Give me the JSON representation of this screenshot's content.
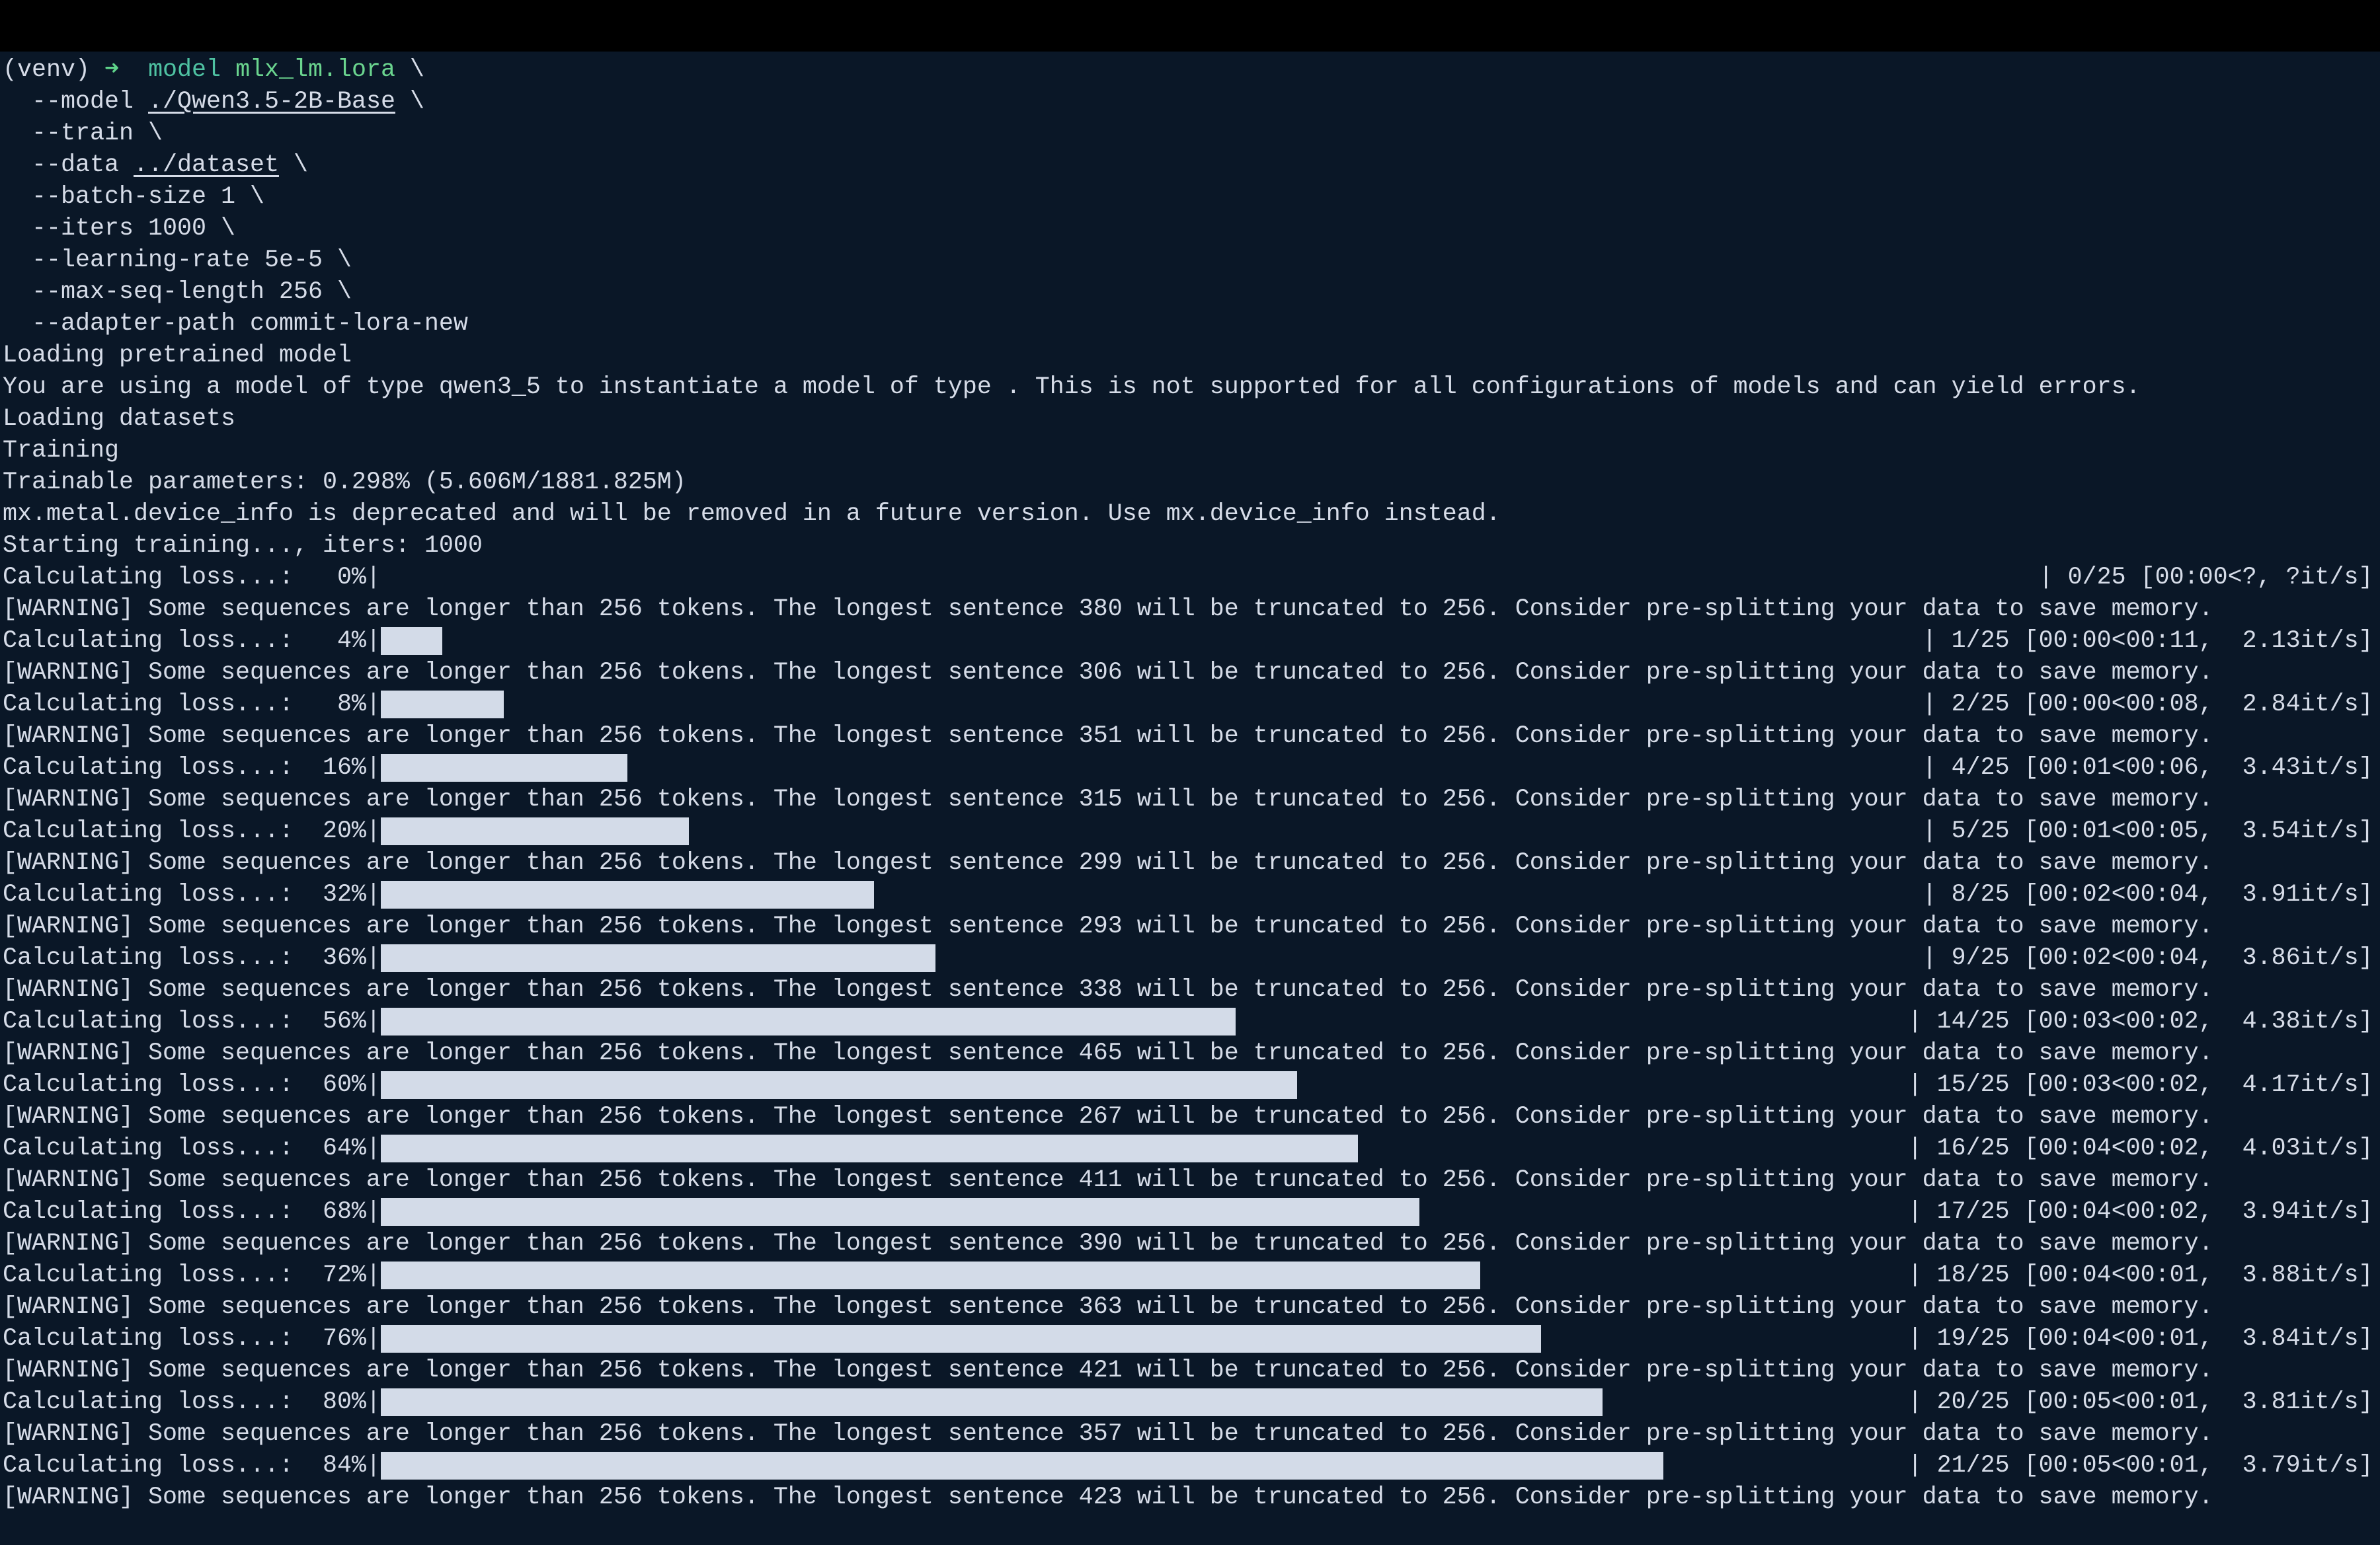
{
  "prompt": {
    "venv": "(venv)",
    "arrow": "➜",
    "dir": "model",
    "command": "mlx_lm.lora",
    "cont": "\\",
    "args": [
      {
        "flag": "  --model ",
        "value": "./Qwen3.5-2B-Base",
        "underline": true
      },
      {
        "flag": "  --train",
        "value": "",
        "underline": false
      },
      {
        "flag": "  --data ",
        "value": "../dataset",
        "underline": true
      },
      {
        "flag": "  --batch-size 1",
        "value": "",
        "underline": false
      },
      {
        "flag": "  --iters 1000",
        "value": "",
        "underline": false
      },
      {
        "flag": "  --learning-rate 5e-5",
        "value": "",
        "underline": false
      },
      {
        "flag": "  --max-seq-length 256",
        "value": "",
        "underline": false
      },
      {
        "flag": "  --adapter-path commit-lora-new",
        "value": "",
        "underline": false,
        "last": true
      }
    ]
  },
  "output": [
    {
      "type": "text",
      "text": "Loading pretrained model"
    },
    {
      "type": "text",
      "text": "You are using a model of type qwen3_5 to instantiate a model of type . This is not supported for all configurations of models and can yield errors."
    },
    {
      "type": "text",
      "text": "Loading datasets"
    },
    {
      "type": "text",
      "text": "Training"
    },
    {
      "type": "text",
      "text": "Trainable parameters: 0.298% (5.606M/1881.825M)"
    },
    {
      "type": "text",
      "text": "mx.metal.device_info is deprecated and will be removed in a future version. Use mx.device_info instead."
    },
    {
      "type": "text",
      "text": "Starting training..., iters: 1000"
    },
    {
      "type": "progress",
      "prefix": "Calculating loss...:   0%|",
      "percent": 0,
      "suffix": "| 0/25 [00:00<?, ?it/s]"
    },
    {
      "type": "text",
      "text": "[WARNING] Some sequences are longer than 256 tokens. The longest sentence 380 will be truncated to 256. Consider pre-splitting your data to save memory."
    },
    {
      "type": "progress",
      "prefix": "Calculating loss...:   4%|",
      "percent": 4,
      "suffix": "| 1/25 [00:00<00:11,  2.13it/s]"
    },
    {
      "type": "text",
      "text": "[WARNING] Some sequences are longer than 256 tokens. The longest sentence 306 will be truncated to 256. Consider pre-splitting your data to save memory."
    },
    {
      "type": "progress",
      "prefix": "Calculating loss...:   8%|",
      "percent": 8,
      "suffix": "| 2/25 [00:00<00:08,  2.84it/s]"
    },
    {
      "type": "text",
      "text": "[WARNING] Some sequences are longer than 256 tokens. The longest sentence 351 will be truncated to 256. Consider pre-splitting your data to save memory."
    },
    {
      "type": "progress",
      "prefix": "Calculating loss...:  16%|",
      "percent": 16,
      "suffix": "| 4/25 [00:01<00:06,  3.43it/s]"
    },
    {
      "type": "text",
      "text": "[WARNING] Some sequences are longer than 256 tokens. The longest sentence 315 will be truncated to 256. Consider pre-splitting your data to save memory."
    },
    {
      "type": "progress",
      "prefix": "Calculating loss...:  20%|",
      "percent": 20,
      "suffix": "| 5/25 [00:01<00:05,  3.54it/s]"
    },
    {
      "type": "text",
      "text": "[WARNING] Some sequences are longer than 256 tokens. The longest sentence 299 will be truncated to 256. Consider pre-splitting your data to save memory."
    },
    {
      "type": "progress",
      "prefix": "Calculating loss...:  32%|",
      "percent": 32,
      "suffix": "| 8/25 [00:02<00:04,  3.91it/s]"
    },
    {
      "type": "text",
      "text": "[WARNING] Some sequences are longer than 256 tokens. The longest sentence 293 will be truncated to 256. Consider pre-splitting your data to save memory."
    },
    {
      "type": "progress",
      "prefix": "Calculating loss...:  36%|",
      "percent": 36,
      "suffix": "| 9/25 [00:02<00:04,  3.86it/s]"
    },
    {
      "type": "text",
      "text": "[WARNING] Some sequences are longer than 256 tokens. The longest sentence 338 will be truncated to 256. Consider pre-splitting your data to save memory."
    },
    {
      "type": "progress",
      "prefix": "Calculating loss...:  56%|",
      "percent": 56,
      "suffix": "| 14/25 [00:03<00:02,  4.38it/s]"
    },
    {
      "type": "text",
      "text": "[WARNING] Some sequences are longer than 256 tokens. The longest sentence 465 will be truncated to 256. Consider pre-splitting your data to save memory."
    },
    {
      "type": "progress",
      "prefix": "Calculating loss...:  60%|",
      "percent": 60,
      "suffix": "| 15/25 [00:03<00:02,  4.17it/s]"
    },
    {
      "type": "text",
      "text": "[WARNING] Some sequences are longer than 256 tokens. The longest sentence 267 will be truncated to 256. Consider pre-splitting your data to save memory."
    },
    {
      "type": "progress",
      "prefix": "Calculating loss...:  64%|",
      "percent": 64,
      "suffix": "| 16/25 [00:04<00:02,  4.03it/s]"
    },
    {
      "type": "text",
      "text": "[WARNING] Some sequences are longer than 256 tokens. The longest sentence 411 will be truncated to 256. Consider pre-splitting your data to save memory."
    },
    {
      "type": "progress",
      "prefix": "Calculating loss...:  68%|",
      "percent": 68,
      "suffix": "| 17/25 [00:04<00:02,  3.94it/s]"
    },
    {
      "type": "text",
      "text": "[WARNING] Some sequences are longer than 256 tokens. The longest sentence 390 will be truncated to 256. Consider pre-splitting your data to save memory."
    },
    {
      "type": "progress",
      "prefix": "Calculating loss...:  72%|",
      "percent": 72,
      "suffix": "| 18/25 [00:04<00:01,  3.88it/s]"
    },
    {
      "type": "text",
      "text": "[WARNING] Some sequences are longer than 256 tokens. The longest sentence 363 will be truncated to 256. Consider pre-splitting your data to save memory."
    },
    {
      "type": "progress",
      "prefix": "Calculating loss...:  76%|",
      "percent": 76,
      "suffix": "| 19/25 [00:04<00:01,  3.84it/s]"
    },
    {
      "type": "text",
      "text": "[WARNING] Some sequences are longer than 256 tokens. The longest sentence 421 will be truncated to 256. Consider pre-splitting your data to save memory."
    },
    {
      "type": "progress",
      "prefix": "Calculating loss...:  80%|",
      "percent": 80,
      "suffix": "| 20/25 [00:05<00:01,  3.81it/s]"
    },
    {
      "type": "text",
      "text": "[WARNING] Some sequences are longer than 256 tokens. The longest sentence 357 will be truncated to 256. Consider pre-splitting your data to save memory."
    },
    {
      "type": "progress",
      "prefix": "Calculating loss...:  84%|",
      "percent": 84,
      "suffix": "| 21/25 [00:05<00:01,  3.79it/s]"
    },
    {
      "type": "text",
      "text": "[WARNING] Some sequences are longer than 256 tokens. The longest sentence 423 will be truncated to 256. Consider pre-splitting your data to save memory."
    }
  ],
  "colors": {
    "background": "#0a1727",
    "text": "#d6dce8",
    "prompt_arrow": "#5fd38a",
    "dir": "#4fc2a2",
    "command": "#6bd58f",
    "progress_fill": "#d3dbe8"
  }
}
